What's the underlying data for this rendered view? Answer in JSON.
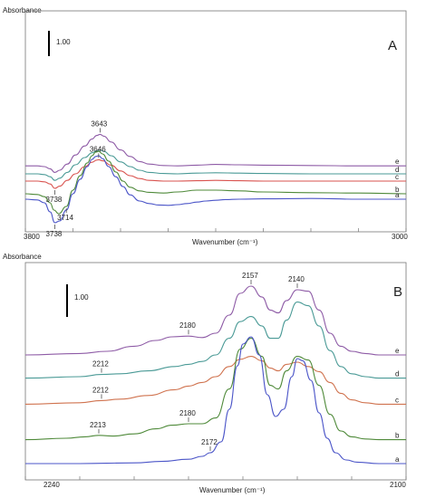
{
  "chart_data": [
    {
      "type": "line",
      "panel_label": "A",
      "ylabel": "Absorbance",
      "xlabel": "Wavenumber (cm⁻¹)",
      "xlim": [
        3800,
        3000
      ],
      "x_tick_labels": [
        "3800",
        "3000"
      ],
      "scale_bar_label": "1.00",
      "series": [
        {
          "name": "e",
          "color": "#8e5ba6",
          "offset": 0.62,
          "label_value": 0.0,
          "x": [
            3800,
            3775,
            3760,
            3748,
            3738,
            3728,
            3712,
            3695,
            3675,
            3660,
            3650,
            3643,
            3635,
            3620,
            3600,
            3580,
            3560,
            3540,
            3510,
            3480,
            3440,
            3400,
            3350,
            3300,
            3200,
            3100,
            3000
          ],
          "y": [
            0.0,
            0.0,
            -0.02,
            -0.08,
            -0.18,
            -0.12,
            0.05,
            0.3,
            0.55,
            0.74,
            0.84,
            0.87,
            0.82,
            0.66,
            0.44,
            0.26,
            0.12,
            0.05,
            0.01,
            0.0,
            0.02,
            0.04,
            0.03,
            0.02,
            0.01,
            0.0,
            0.0
          ]
        },
        {
          "name": "d",
          "color": "#4a9a96",
          "offset": 0.4,
          "label_value": 0.0,
          "x": [
            3800,
            3775,
            3760,
            3748,
            3738,
            3728,
            3712,
            3695,
            3675,
            3660,
            3650,
            3643,
            3635,
            3620,
            3600,
            3580,
            3560,
            3540,
            3510,
            3480,
            3440,
            3400,
            3350,
            3300,
            3200,
            3100,
            3000
          ],
          "y": [
            0.0,
            0.0,
            -0.02,
            -0.08,
            -0.18,
            -0.12,
            0.04,
            0.25,
            0.45,
            0.58,
            0.64,
            0.66,
            0.62,
            0.5,
            0.33,
            0.2,
            0.1,
            0.04,
            0.01,
            0.0,
            0.02,
            0.03,
            0.02,
            0.01,
            0.0,
            0.0,
            0.0
          ]
        },
        {
          "name": "c",
          "color": "#d9534f",
          "offset": 0.2,
          "label_value": 0.0,
          "x": [
            3800,
            3775,
            3760,
            3748,
            3738,
            3728,
            3712,
            3695,
            3675,
            3660,
            3650,
            3646,
            3638,
            3620,
            3600,
            3580,
            3560,
            3540,
            3510,
            3480,
            3440,
            3400,
            3350,
            3300,
            3200,
            3100,
            3000
          ],
          "y": [
            0.0,
            0.0,
            -0.02,
            -0.08,
            -0.2,
            -0.14,
            0.02,
            0.2,
            0.4,
            0.52,
            0.58,
            0.59,
            0.56,
            0.44,
            0.28,
            0.15,
            0.07,
            0.02,
            0.0,
            0.0,
            0.01,
            0.02,
            0.01,
            0.0,
            0.0,
            0.0,
            0.0
          ]
        },
        {
          "name": "b",
          "color": "#4f8a3a",
          "offset": -0.15,
          "label_value": 0.0,
          "x": [
            3800,
            3775,
            3760,
            3748,
            3740,
            3730,
            3714,
            3700,
            3685,
            3670,
            3660,
            3652,
            3646,
            3638,
            3625,
            3610,
            3595,
            3580,
            3560,
            3540,
            3510,
            3480,
            3440,
            3400,
            3350,
            3300,
            3200,
            3100,
            3000
          ],
          "y": [
            0.0,
            -0.02,
            -0.08,
            -0.25,
            -0.45,
            -0.55,
            -0.35,
            0.1,
            0.5,
            0.85,
            1.05,
            1.15,
            1.17,
            1.1,
            0.9,
            0.6,
            0.35,
            0.18,
            0.08,
            0.04,
            0.02,
            0.05,
            0.1,
            0.1,
            0.08,
            0.05,
            0.03,
            0.02,
            0.0
          ]
        },
        {
          "name": "a",
          "color": "#4b55c8",
          "offset": -0.3,
          "label_value": 0.0,
          "x": [
            3800,
            3775,
            3760,
            3748,
            3738,
            3728,
            3714,
            3700,
            3685,
            3670,
            3660,
            3652,
            3646,
            3638,
            3625,
            3610,
            3595,
            3580,
            3560,
            3540,
            3520,
            3500,
            3480,
            3460,
            3440,
            3420,
            3400,
            3380,
            3350,
            3300,
            3200,
            3100,
            3000
          ],
          "y": [
            0.0,
            -0.02,
            -0.1,
            -0.35,
            -0.65,
            -0.6,
            -0.3,
            0.15,
            0.55,
            0.9,
            1.1,
            1.18,
            1.2,
            1.12,
            0.9,
            0.62,
            0.35,
            0.12,
            -0.05,
            -0.12,
            -0.16,
            -0.17,
            -0.15,
            -0.12,
            -0.08,
            -0.05,
            -0.03,
            -0.01,
            0.0,
            0.01,
            0.02,
            0.0,
            0.0
          ]
        }
      ],
      "annotations": [
        {
          "text": "3643",
          "x": 3643,
          "series": "e"
        },
        {
          "text": "3646",
          "x": 3646,
          "series": "c"
        },
        {
          "text": "3738",
          "x": 3738,
          "series": "c"
        },
        {
          "text": "3714",
          "x": 3714,
          "series": "b"
        },
        {
          "text": "3738",
          "x": 3738,
          "series": "a"
        }
      ]
    },
    {
      "type": "line",
      "panel_label": "B",
      "ylabel": "Absorbance",
      "xlabel": "Wavenumber (cm⁻¹)",
      "xlim": [
        2240,
        2100
      ],
      "x_tick_labels": [
        "2240",
        "2100"
      ],
      "scale_bar_label": "1.00",
      "series": [
        {
          "name": "e",
          "color": "#8e5ba6",
          "offset": 1.5,
          "label_value": 0.0,
          "x": [
            2240,
            2220,
            2210,
            2200,
            2192,
            2186,
            2180,
            2175,
            2170,
            2165,
            2161,
            2157,
            2153,
            2150,
            2147,
            2144,
            2140,
            2136,
            2132,
            2128,
            2124,
            2120,
            2115,
            2110,
            2100
          ],
          "y": [
            0.0,
            0.02,
            0.05,
            0.12,
            0.2,
            0.25,
            0.26,
            0.24,
            0.3,
            0.55,
            0.85,
            0.95,
            0.8,
            0.62,
            0.58,
            0.75,
            0.9,
            0.88,
            0.62,
            0.3,
            0.12,
            0.05,
            0.02,
            0.0,
            0.0
          ]
        },
        {
          "name": "d",
          "color": "#4a9a96",
          "offset": 1.18,
          "label_value": 0.0,
          "x": [
            2240,
            2220,
            2212,
            2205,
            2195,
            2185,
            2180,
            2175,
            2170,
            2165,
            2161,
            2157,
            2153,
            2150,
            2147,
            2144,
            2140,
            2136,
            2132,
            2128,
            2124,
            2120,
            2115,
            2110,
            2100
          ],
          "y": [
            0.0,
            0.02,
            0.05,
            0.06,
            0.1,
            0.16,
            0.19,
            0.23,
            0.32,
            0.55,
            0.78,
            0.85,
            0.72,
            0.55,
            0.55,
            0.8,
            1.05,
            1.0,
            0.72,
            0.38,
            0.16,
            0.06,
            0.02,
            0.0,
            0.0
          ]
        },
        {
          "name": "c",
          "color": "#d0734f",
          "offset": 0.82,
          "label_value": 0.0,
          "x": [
            2240,
            2220,
            2212,
            2205,
            2195,
            2185,
            2180,
            2175,
            2170,
            2165,
            2161,
            2157,
            2153,
            2150,
            2147,
            2144,
            2140,
            2136,
            2132,
            2128,
            2124,
            2120,
            2115,
            2110,
            2100
          ],
          "y": [
            0.0,
            0.02,
            0.05,
            0.07,
            0.12,
            0.2,
            0.25,
            0.3,
            0.38,
            0.52,
            0.62,
            0.66,
            0.6,
            0.5,
            0.46,
            0.55,
            0.58,
            0.52,
            0.45,
            0.3,
            0.15,
            0.06,
            0.02,
            0.0,
            0.0
          ]
        },
        {
          "name": "b",
          "color": "#4f8a3a",
          "offset": 0.33,
          "label_value": 0.0,
          "x": [
            2240,
            2225,
            2218,
            2213,
            2208,
            2200,
            2192,
            2186,
            2180,
            2175,
            2170,
            2165,
            2161,
            2157,
            2153,
            2150,
            2147,
            2144,
            2140,
            2136,
            2132,
            2128,
            2124,
            2120,
            2115,
            2110,
            2100
          ],
          "y": [
            0.0,
            0.02,
            0.04,
            0.06,
            0.05,
            0.08,
            0.15,
            0.2,
            0.22,
            0.22,
            0.3,
            0.7,
            1.25,
            1.4,
            1.15,
            0.75,
            0.7,
            0.95,
            1.15,
            1.1,
            0.75,
            0.35,
            0.12,
            0.04,
            0.01,
            0.0,
            0.0
          ]
        },
        {
          "name": "a",
          "color": "#4b55c8",
          "offset": 0.0,
          "label_value": 0.0,
          "x": [
            2240,
            2220,
            2200,
            2190,
            2180,
            2175,
            2172,
            2168,
            2165,
            2162,
            2160,
            2157,
            2154,
            2151,
            2148,
            2145,
            2142,
            2140,
            2138,
            2135,
            2132,
            2129,
            2126,
            2122,
            2118,
            2110,
            2100
          ],
          "y": [
            0.0,
            0.0,
            0.01,
            0.03,
            0.06,
            0.1,
            0.15,
            0.3,
            0.75,
            1.35,
            1.65,
            1.75,
            1.5,
            0.95,
            0.65,
            0.75,
            1.2,
            1.45,
            1.42,
            1.15,
            0.7,
            0.35,
            0.15,
            0.05,
            0.02,
            0.0,
            0.0
          ]
        }
      ],
      "annotations": [
        {
          "text": "2157",
          "x": 2157,
          "series": "e"
        },
        {
          "text": "2140",
          "x": 2140,
          "series": "e"
        },
        {
          "text": "2180",
          "x": 2180,
          "series": "e"
        },
        {
          "text": "2212",
          "x": 2212,
          "series": "d"
        },
        {
          "text": "2212",
          "x": 2212,
          "series": "c"
        },
        {
          "text": "2213",
          "x": 2213,
          "series": "b"
        },
        {
          "text": "2180",
          "x": 2180,
          "series": "b"
        },
        {
          "text": "2172",
          "x": 2172,
          "series": "a"
        }
      ]
    }
  ]
}
